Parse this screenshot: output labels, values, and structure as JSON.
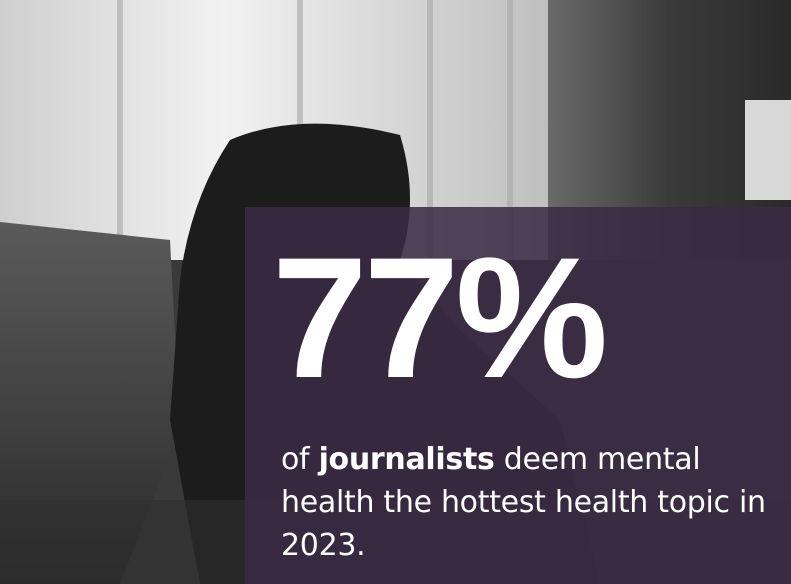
{
  "stat": "77%",
  "caption": {
    "before": "of",
    "emphasis": "journalists",
    "after": "deem mental health the hottest health topic in 2023."
  }
}
